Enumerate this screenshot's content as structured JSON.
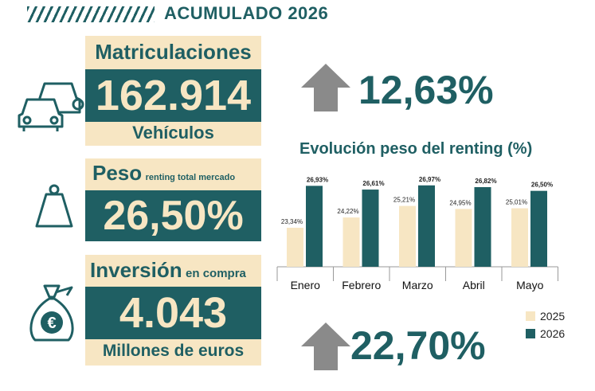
{
  "header": {
    "title": "ACUMULADO 2026"
  },
  "matriculaciones": {
    "title": "Matriculaciones",
    "value": "162.914",
    "unit": "Vehículos",
    "change": "12,63%"
  },
  "peso": {
    "title": "Peso",
    "subtitle": "renting total mercado",
    "value": "26,50%"
  },
  "inversion": {
    "title": "Inversión",
    "subtitle": "en compra",
    "value": "4.043",
    "unit": "Millones de euros",
    "change": "22,70%"
  },
  "colors": {
    "teal": "#1f5f63",
    "cream": "#f7e6c3",
    "arrow": "#8a8a8a"
  },
  "icons": {
    "cars": "cars-icon",
    "weight": "weight-icon",
    "money_bag": "money-bag-icon",
    "arrow_up": "arrow-up-icon"
  },
  "chart_data": {
    "type": "bar",
    "title": "Evolución peso del renting (%)",
    "categories": [
      "Enero",
      "Febrero",
      "Marzo",
      "Abril",
      "Mayo"
    ],
    "series": [
      {
        "name": "2025",
        "values": [
          23.34,
          24.22,
          25.21,
          24.95,
          25.01
        ],
        "labels": [
          "23,34%",
          "24,22%",
          "25,21%",
          "24,95%",
          "25,01%"
        ],
        "color": "#f7e6c3"
      },
      {
        "name": "2026",
        "values": [
          26.93,
          26.61,
          26.97,
          26.82,
          26.5
        ],
        "labels": [
          "26,93%",
          "26,61%",
          "26,97%",
          "26,82%",
          "26,50%"
        ],
        "color": "#1f5f63"
      }
    ],
    "ylim": [
      20,
      27.5
    ],
    "grid": false,
    "legend": "bottom-right"
  }
}
